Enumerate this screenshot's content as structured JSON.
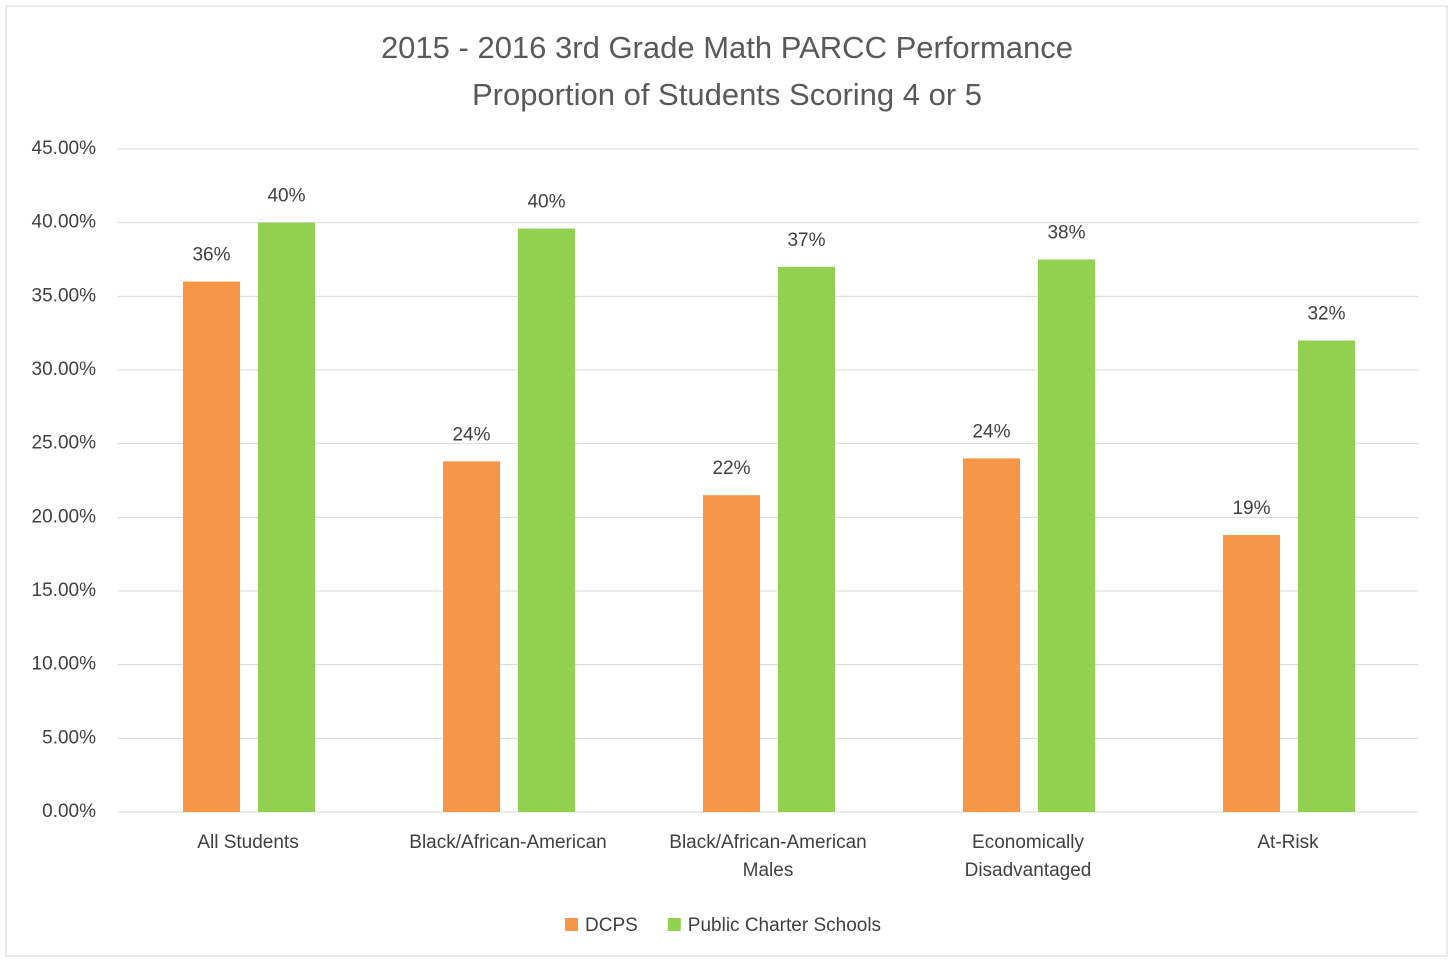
{
  "chart_data": {
    "type": "bar",
    "title": "2015 - 2016 3rd Grade Math PARCC Performance",
    "subtitle": "Proportion of Students Scoring 4 or 5",
    "categories": [
      "All Students",
      "Black/African-American",
      "Black/African-American Males",
      "Economically Disadvantaged",
      "At-Risk"
    ],
    "series": [
      {
        "name": "DCPS",
        "color": "#f79646",
        "values": [
          36.0,
          23.8,
          21.5,
          24.0,
          18.8
        ],
        "value_labels": [
          "36%",
          "24%",
          "22%",
          "24%",
          "19%"
        ]
      },
      {
        "name": "Public Charter Schools",
        "color": "#92d050",
        "values": [
          40.0,
          39.6,
          37.0,
          37.5,
          32.0
        ],
        "value_labels": [
          "40%",
          "40%",
          "37%",
          "38%",
          "32%"
        ]
      }
    ],
    "ylim": [
      0,
      45
    ],
    "yticks": [
      {
        "value": 0,
        "label": "0.00%"
      },
      {
        "value": 5,
        "label": "5.00%"
      },
      {
        "value": 10,
        "label": "10.00%"
      },
      {
        "value": 15,
        "label": "15.00%"
      },
      {
        "value": 20,
        "label": "20.00%"
      },
      {
        "value": 25,
        "label": "25.00%"
      },
      {
        "value": 30,
        "label": "30.00%"
      },
      {
        "value": 35,
        "label": "35.00%"
      },
      {
        "value": 40,
        "label": "40.00%"
      },
      {
        "value": 45,
        "label": "45.00%"
      }
    ],
    "grid": true,
    "legend": "bottom"
  }
}
